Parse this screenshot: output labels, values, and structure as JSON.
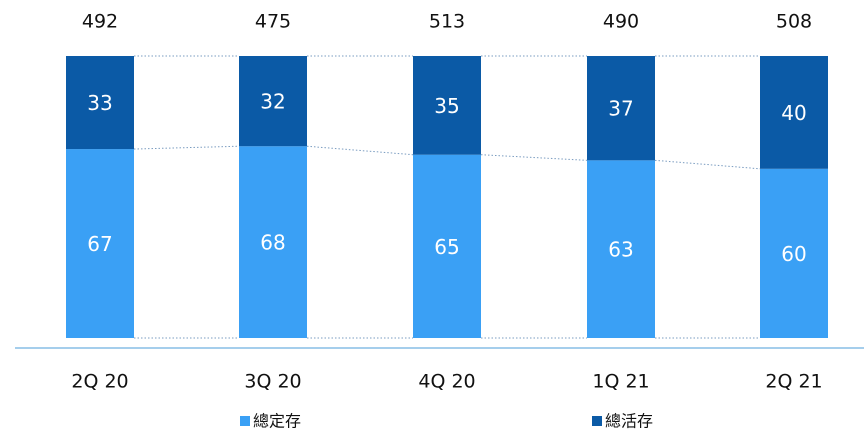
{
  "chart_data": {
    "type": "stacked_percent_bar",
    "categories": [
      "2Q 20",
      "3Q 20",
      "4Q 20",
      "1Q 21",
      "2Q 21"
    ],
    "series": [
      {
        "name": "總定存",
        "color": "#3aa0f5",
        "values": [
          67,
          68,
          65,
          63,
          60
        ]
      },
      {
        "name": "總活存",
        "color": "#0b5aa6",
        "values": [
          33,
          32,
          35,
          37,
          40
        ]
      }
    ],
    "totals": [
      492,
      475,
      513,
      490,
      508
    ],
    "ylim": [
      0,
      100
    ]
  }
}
